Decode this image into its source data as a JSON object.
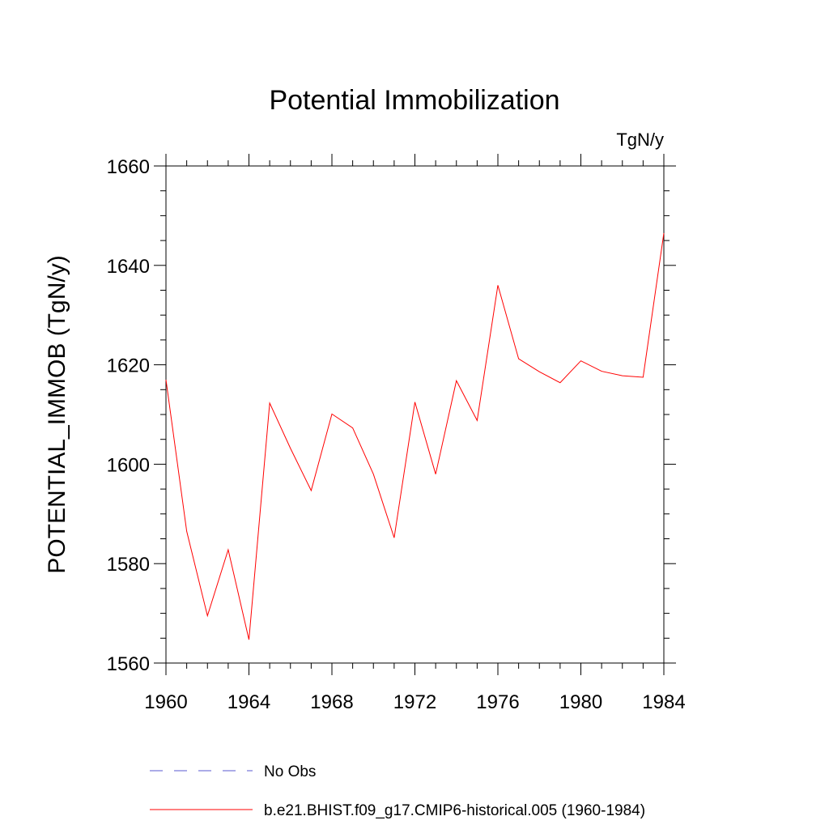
{
  "chart_data": {
    "type": "line",
    "title": "Potential Immobilization",
    "units_label": "TgN/y",
    "ylabel": "POTENTIAL_IMMOB  (TgN/y)",
    "xlabel": "",
    "xlim": [
      1960,
      1984
    ],
    "ylim": [
      1560,
      1660
    ],
    "x_ticks": [
      1960,
      1964,
      1968,
      1972,
      1976,
      1980,
      1984
    ],
    "y_ticks": [
      1560,
      1580,
      1600,
      1620,
      1640,
      1660
    ],
    "grid": false,
    "legend_position": "bottom",
    "series": [
      {
        "name": "No Obs",
        "color": "#5a5ad0",
        "style": "dashed",
        "x": [],
        "values": []
      },
      {
        "name": "b.e21.BHIST.f09_g17.CMIP6-historical.005 (1960-1984)",
        "color": "#ff0000",
        "style": "solid",
        "x": [
          1960,
          1961,
          1962,
          1963,
          1964,
          1965,
          1966,
          1967,
          1968,
          1969,
          1970,
          1971,
          1972,
          1973,
          1974,
          1975,
          1976,
          1977,
          1978,
          1979,
          1980,
          1981,
          1982,
          1983,
          1984
        ],
        "values": [
          1617,
          1586.5,
          1569.5,
          1582.8,
          1564.7,
          1612.3,
          1603.2,
          1594.7,
          1610.1,
          1607.3,
          1598,
          1585.2,
          1612.5,
          1598,
          1616.8,
          1608.8,
          1636,
          1621.2,
          1618.6,
          1616.4,
          1620.8,
          1618.7,
          1617.8,
          1617.5,
          1646.5
        ]
      }
    ]
  }
}
